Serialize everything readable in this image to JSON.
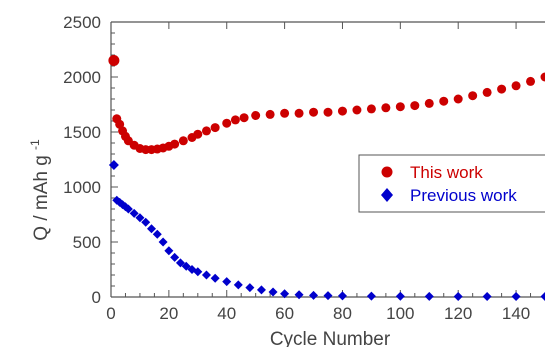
{
  "chart_data": {
    "type": "scatter",
    "title": "",
    "xlabel": "Cycle Number",
    "ylabel": "Q / mAh g",
    "ylabel_superscript": "-1",
    "xlim": [
      0,
      150
    ],
    "ylim": [
      0,
      2500
    ],
    "x_ticks": [
      "0",
      "20",
      "40",
      "60",
      "80",
      "100",
      "120",
      "140"
    ],
    "y_ticks": [
      "0",
      "500",
      "1000",
      "1500",
      "2000",
      "2500"
    ],
    "grid": false,
    "legend_position": "right",
    "series": [
      {
        "name": "This work",
        "color": "#cc0000",
        "marker": "circle",
        "x": [
          1,
          2,
          3,
          4,
          5,
          6,
          8,
          10,
          12,
          14,
          16,
          18,
          20,
          22,
          25,
          28,
          30,
          33,
          36,
          40,
          43,
          46,
          50,
          55,
          60,
          65,
          70,
          75,
          80,
          85,
          90,
          95,
          100,
          105,
          110,
          115,
          120,
          125,
          130,
          135,
          140,
          145,
          150
        ],
        "y": [
          2150,
          1620,
          1570,
          1510,
          1460,
          1420,
          1380,
          1350,
          1340,
          1340,
          1345,
          1355,
          1370,
          1390,
          1420,
          1450,
          1480,
          1510,
          1540,
          1580,
          1610,
          1630,
          1650,
          1660,
          1670,
          1670,
          1680,
          1680,
          1690,
          1700,
          1710,
          1720,
          1730,
          1740,
          1760,
          1780,
          1800,
          1830,
          1860,
          1890,
          1920,
          1960,
          2000
        ]
      },
      {
        "name": "Previous work",
        "color": "#0000cc",
        "marker": "diamond",
        "x": [
          1,
          2,
          3,
          4,
          5,
          6,
          8,
          10,
          12,
          14,
          16,
          18,
          20,
          22,
          24,
          26,
          28,
          30,
          33,
          36,
          40,
          44,
          48,
          52,
          56,
          60,
          65,
          70,
          75,
          80,
          90,
          100,
          110,
          120,
          130,
          140,
          150
        ],
        "y": [
          1200,
          880,
          860,
          840,
          820,
          800,
          760,
          720,
          680,
          620,
          570,
          500,
          420,
          360,
          310,
          280,
          250,
          230,
          200,
          170,
          140,
          110,
          85,
          65,
          45,
          30,
          20,
          15,
          12,
          10,
          8,
          7,
          6,
          5,
          5,
          5,
          5
        ]
      }
    ]
  }
}
